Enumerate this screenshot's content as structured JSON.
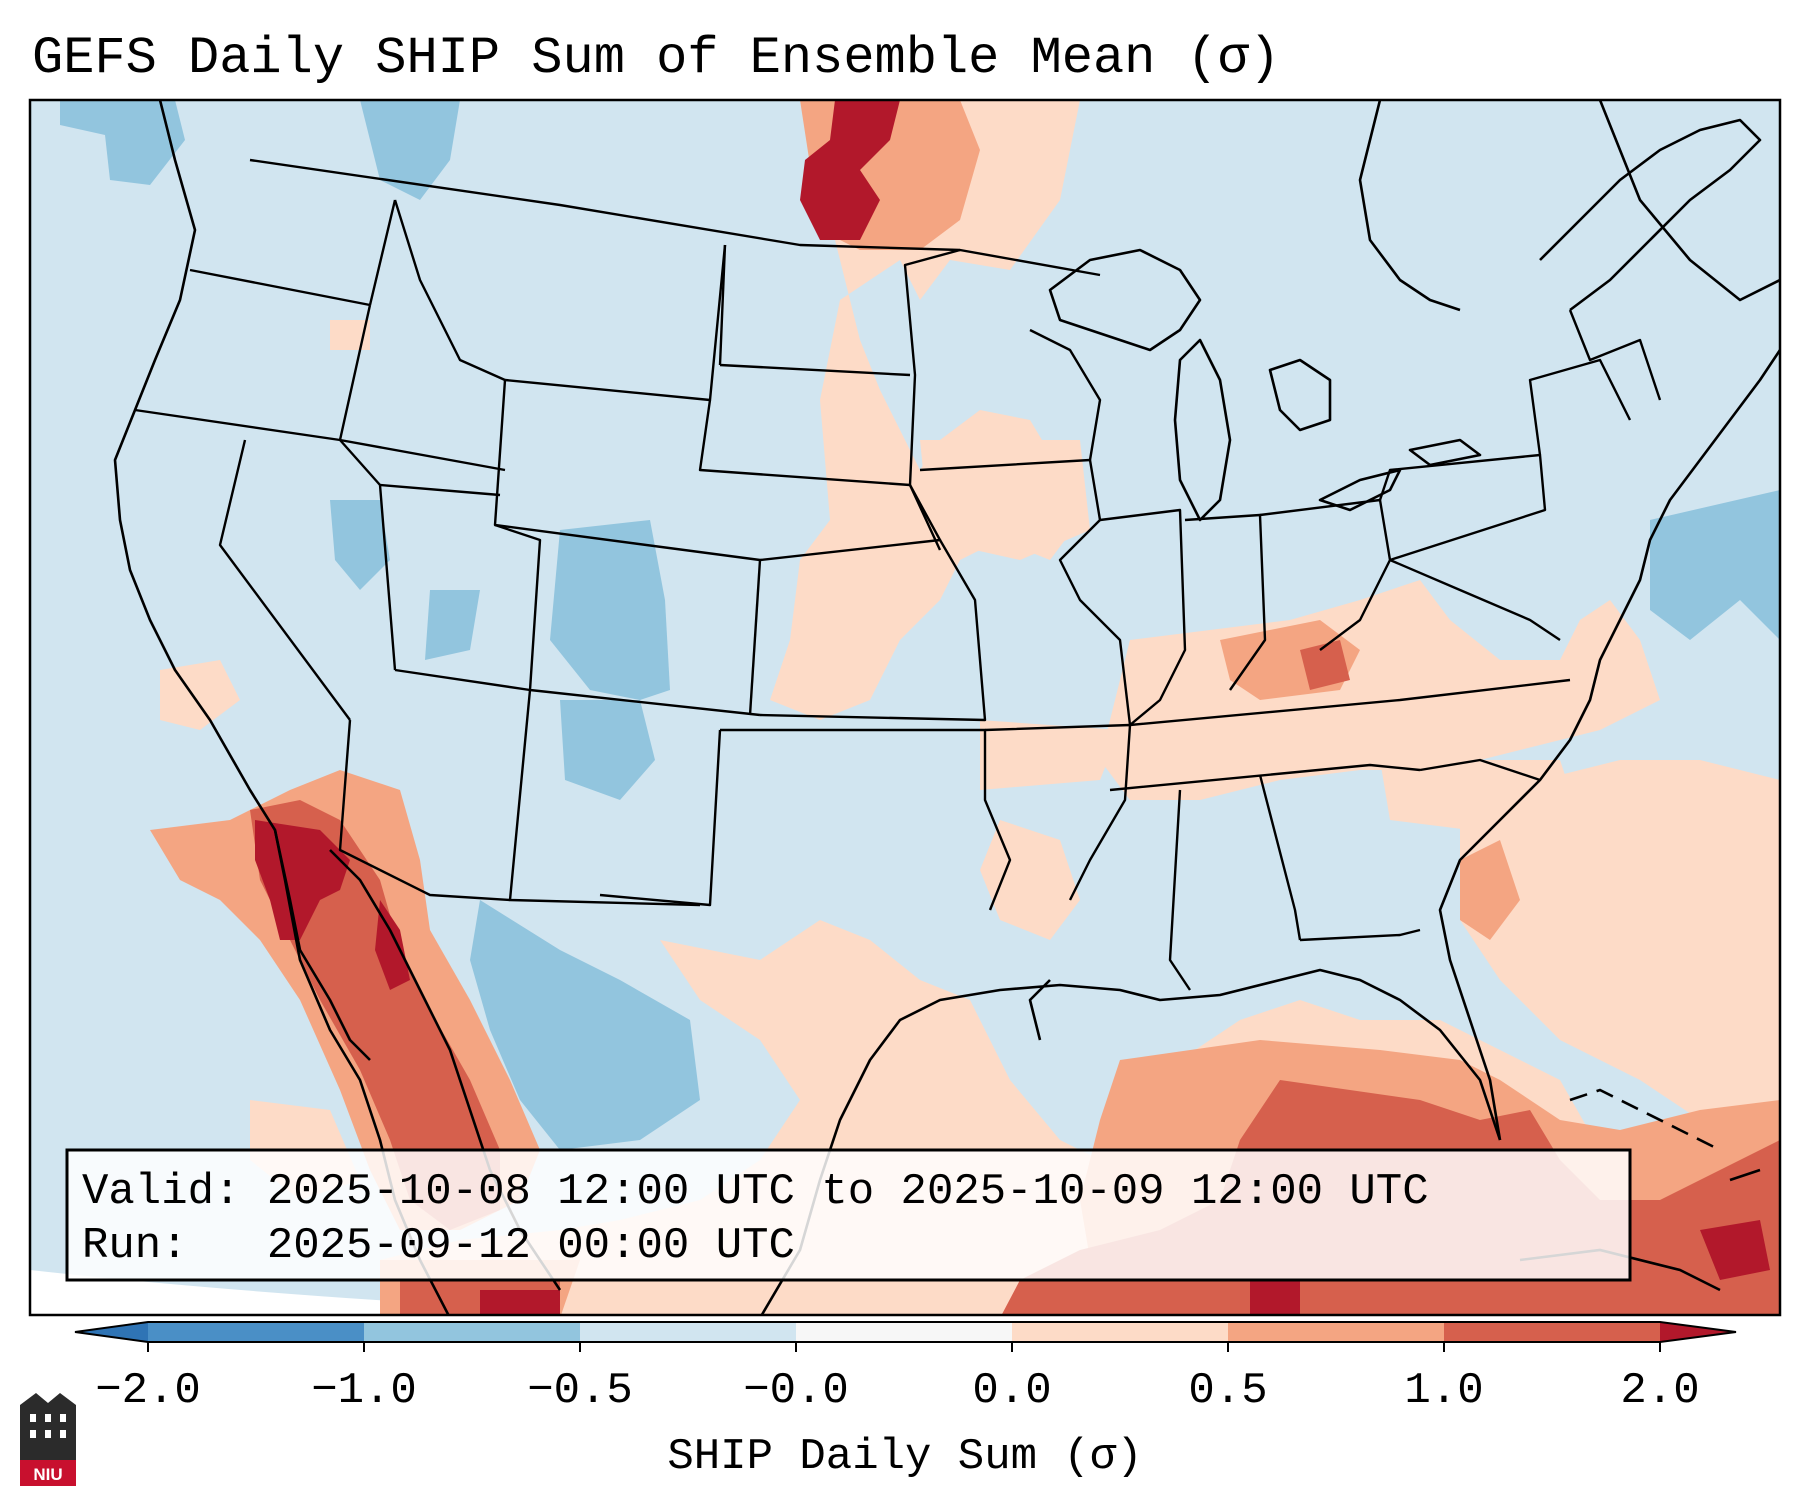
{
  "title": "GEFS Daily SHIP Sum of Ensemble Mean (σ)",
  "info_box": {
    "valid_line": "Valid: 2025-10-08 12:00 UTC to 2025-10-09 12:00 UTC",
    "run_line": "Run:   2025-09-12 00:00 UTC"
  },
  "colorbar": {
    "label": "SHIP Daily Sum (σ)",
    "ticks": [
      "−2.0",
      "−1.0",
      "−0.5",
      "−0.0",
      "0.0",
      "0.5",
      "1.0",
      "2.0"
    ],
    "bins": [
      {
        "range": "-2.0 to -1.0",
        "color": "#4a8fc6"
      },
      {
        "range": "-1.0 to -0.5",
        "color": "#92c5de"
      },
      {
        "range": "-0.5 to -0.0",
        "color": "#d1e5f0"
      },
      {
        "range": "-0.0 to 0.0",
        "color": "#f7f7f7"
      },
      {
        "range": "0.0 to 0.5",
        "color": "#fddbc7"
      },
      {
        "range": "0.5 to 1.0",
        "color": "#f4a582"
      },
      {
        "range": "1.0 to 2.0",
        "color": "#d6604d"
      }
    ],
    "under_color": "#2f74b5",
    "over_color": "#b2182b"
  },
  "map": {
    "background_value_color": "#d1e5f0",
    "field_colors": {
      "strong_positive": "#b2182b",
      "positive": "#d6604d",
      "moderate_positive": "#f4a582",
      "weak_positive": "#fddbc7",
      "weak_negative": "#d1e5f0",
      "moderate_negative": "#92c5de",
      "strong_negative": "#4a8fc6"
    }
  },
  "logo": {
    "text": "NIU",
    "color": "#c8102e"
  }
}
